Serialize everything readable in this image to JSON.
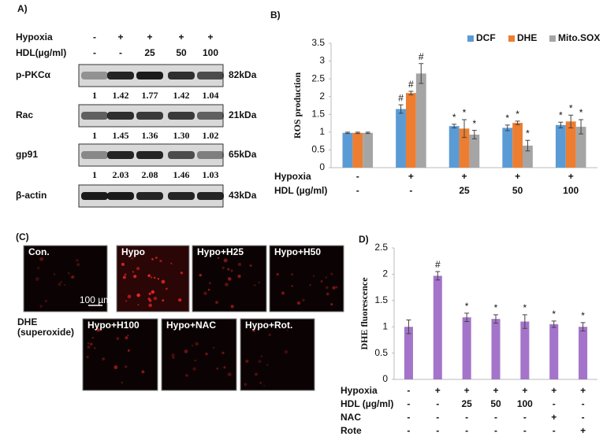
{
  "western_blot": {
    "panel_label": "A)",
    "conditions": [
      {
        "name": "Hypoxia",
        "values": [
          "-",
          "+",
          "+",
          "+",
          "+"
        ]
      },
      {
        "name": "HDL(µg/ml)",
        "values": [
          "-",
          "-",
          "25",
          "50",
          "100"
        ]
      }
    ],
    "blots": [
      {
        "name": "p-PKCα",
        "size": "82kDa",
        "quantification": [
          "1",
          "1.42",
          "1.77",
          "1.42",
          "1.04"
        ]
      },
      {
        "name": "Rac",
        "size": "21kDa",
        "quantification": [
          "1",
          "1.45",
          "1.36",
          "1.30",
          "1.02"
        ]
      },
      {
        "name": "gp91",
        "size": "65kDa",
        "quantification": [
          "1",
          "2.03",
          "2.08",
          "1.46",
          "1.03"
        ]
      },
      {
        "name": "β-actin",
        "size": "43kDa"
      }
    ]
  },
  "chart_data": [
    {
      "type": "bar",
      "panel_label": "B)",
      "y_label": "ROS production",
      "conditions": [
        {
          "name": "Hypoxia",
          "values": [
            "-",
            "+",
            "+",
            "+",
            "+"
          ]
        },
        {
          "name": "HDL (µg/ml)",
          "values": [
            "-",
            "-",
            "25",
            "50",
            "100"
          ]
        }
      ],
      "series": [
        {
          "name": "DCF",
          "color": "#5b9bd5",
          "values": [
            0.98,
            1.65,
            1.17,
            1.12,
            1.2
          ],
          "errors": [
            0.02,
            0.12,
            0.05,
            0.08,
            0.08
          ],
          "significance": [
            null,
            "#",
            "*",
            "*",
            "*"
          ]
        },
        {
          "name": "DHE",
          "color": "#ed7d31",
          "values": [
            0.98,
            2.1,
            1.1,
            1.26,
            1.3
          ],
          "errors": [
            0.02,
            0.05,
            0.25,
            0.05,
            0.18
          ],
          "significance": [
            null,
            "#",
            "*",
            "*",
            "*"
          ]
        },
        {
          "name": "Mito.SOX",
          "color": "#a5a5a5",
          "values": [
            0.98,
            2.65,
            0.93,
            0.62,
            1.15
          ],
          "errors": [
            0.02,
            0.28,
            0.12,
            0.15,
            0.2
          ],
          "significance": [
            null,
            "#",
            "*",
            "*",
            "*"
          ]
        }
      ],
      "ylim": [
        0,
        3.5
      ],
      "yticks": [
        0,
        0.5,
        1,
        1.5,
        2,
        2.5,
        3,
        3.5
      ],
      "legend": "top-right"
    },
    {
      "type": "bar",
      "panel_label": "D)",
      "y_label": "DHE fluorescence",
      "conditions": [
        {
          "name": "Hypoxia",
          "values": [
            "-",
            "+",
            "+",
            "+",
            "+",
            "+",
            "+"
          ]
        },
        {
          "name": "HDL (µg/ml)",
          "values": [
            "-",
            "-",
            "25",
            "50",
            "100",
            "-",
            "-"
          ]
        },
        {
          "name": "NAC",
          "values": [
            "-",
            "-",
            "-",
            "-",
            "-",
            "+",
            "-"
          ]
        },
        {
          "name": "Rote",
          "values": [
            "-",
            "-",
            "-",
            "-",
            "-",
            "-",
            "+"
          ]
        }
      ],
      "values": [
        1.0,
        1.97,
        1.18,
        1.15,
        1.1,
        1.05,
        1.0
      ],
      "errors": [
        0.13,
        0.08,
        0.08,
        0.08,
        0.13,
        0.06,
        0.08
      ],
      "significance": [
        null,
        "#",
        "*",
        "*",
        "*",
        "*",
        "*"
      ],
      "color": "#a374c9",
      "ylim": [
        0,
        2.5
      ],
      "yticks": [
        0,
        0.5,
        1,
        1.5,
        2,
        2.5
      ]
    }
  ],
  "fluorescence": {
    "panel_label": "(C)",
    "stain_label": [
      "DHE",
      "(superoxide)"
    ],
    "scale_bar": "100 µm",
    "images": [
      "Con.",
      "Hypo",
      "Hypo+H25",
      "Hypo+H50",
      "Hypo+H100",
      "Hypo+NAC",
      "Hypo+Rot."
    ]
  }
}
